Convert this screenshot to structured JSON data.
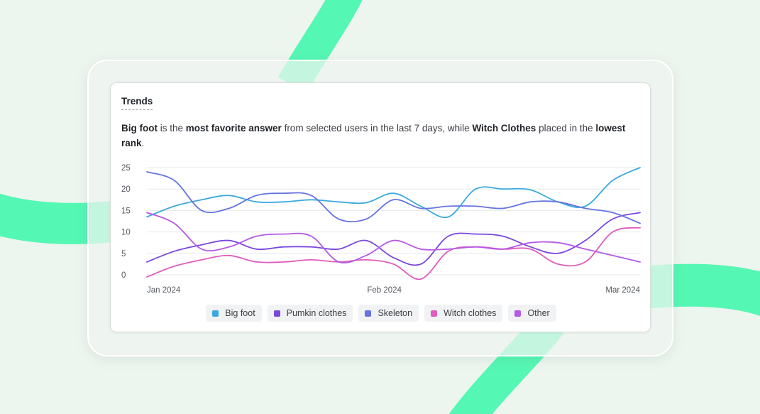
{
  "card": {
    "title": "Trends",
    "summary": {
      "subject": "Big foot",
      "t1": " is the ",
      "b1": "most favorite answer",
      "t2": " from selected users in the last 7 days, while ",
      "b2": "Witch Clothes",
      "t3": " placed in the ",
      "b3": "lowest rank",
      "t4": "."
    }
  },
  "colors": {
    "background": "#edf5ef",
    "ribbon": "#55f7b4"
  },
  "chart_data": {
    "type": "line",
    "smooth": true,
    "grid": true,
    "ylim": [
      0,
      25
    ],
    "yticks": [
      0,
      5,
      10,
      15,
      20,
      25
    ],
    "xlim": [
      0,
      27
    ],
    "xticks": [
      {
        "x": 0,
        "label": "Jan 2024"
      },
      {
        "x": 13,
        "label": "Feb 2024"
      },
      {
        "x": 27,
        "label": "Mar 2024"
      }
    ],
    "x": [
      0,
      1.5,
      3,
      4.5,
      6,
      7.5,
      9,
      10.5,
      12,
      13.5,
      15,
      16.5,
      18,
      19.5,
      21,
      22.5,
      24,
      25.5,
      27
    ],
    "legend_position": "bottom",
    "series": [
      {
        "name": "Big foot",
        "color": "#3aa9df",
        "values": [
          13.5,
          16,
          17.5,
          18.5,
          17,
          17,
          17.5,
          17,
          16.8,
          19,
          16,
          13.5,
          20,
          20,
          19.8,
          17,
          16,
          22,
          25
        ]
      },
      {
        "name": "Pumkin clothes",
        "color": "#7a48dd",
        "values": [
          3,
          5.5,
          7,
          8,
          6,
          6.5,
          6.5,
          6,
          8,
          4,
          2.5,
          9,
          9.5,
          9,
          6.5,
          5,
          8,
          13,
          14.5
        ]
      },
      {
        "name": "Skeleton",
        "color": "#6673e0",
        "values": [
          24,
          22,
          15,
          15.5,
          18.5,
          19,
          18.5,
          13,
          13,
          17.5,
          15.5,
          16,
          16,
          15.5,
          17,
          17,
          15.5,
          14.5,
          12
        ]
      },
      {
        "name": "Witch clothes",
        "color": "#e05cbd",
        "values": [
          -0.5,
          2,
          3.5,
          4.5,
          3,
          3,
          3.5,
          3,
          3.5,
          2.5,
          -1,
          5.5,
          6.5,
          6,
          6,
          2.5,
          3,
          10,
          11
        ]
      },
      {
        "name": "Other",
        "color": "#b55ae6",
        "values": [
          14.5,
          12,
          6,
          6.5,
          9,
          9.5,
          9,
          3,
          4.5,
          8,
          6,
          6,
          6.5,
          6,
          7.5,
          7.5,
          6,
          4.5,
          3
        ]
      }
    ]
  }
}
